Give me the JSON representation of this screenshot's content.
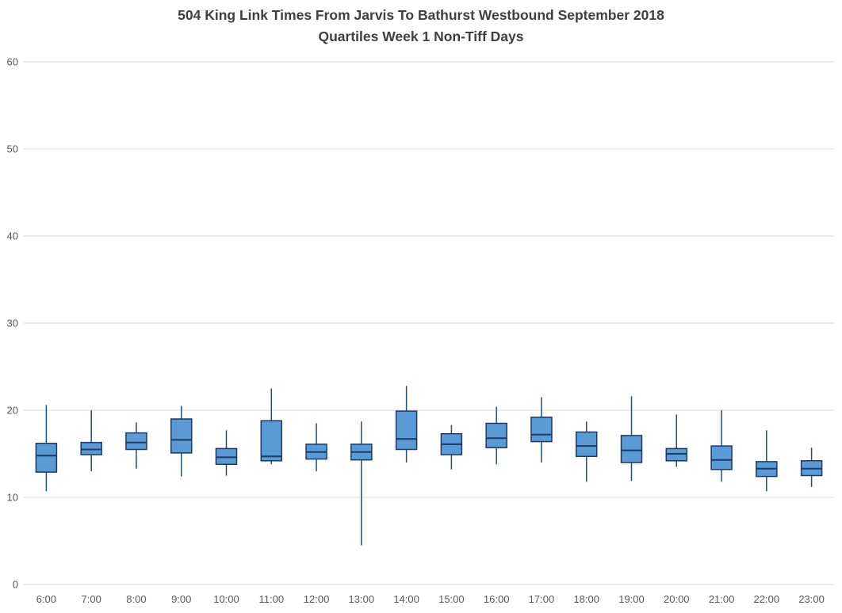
{
  "chart_data": {
    "type": "boxplot",
    "title": "504 King Link Times From Jarvis To Bathurst Westbound September 2018",
    "subtitle": "Quartiles Week 1 Non-Tiff Days",
    "xlabel": "",
    "ylabel": "",
    "ylim": [
      0,
      60
    ],
    "y_ticks": [
      0,
      10,
      20,
      30,
      40,
      50,
      60
    ],
    "grid": true,
    "legend": "none",
    "categories": [
      "6:00",
      "7:00",
      "8:00",
      "9:00",
      "10:00",
      "11:00",
      "12:00",
      "13:00",
      "14:00",
      "15:00",
      "16:00",
      "17:00",
      "18:00",
      "19:00",
      "20:00",
      "21:00",
      "22:00",
      "23:00"
    ],
    "boxes": [
      {
        "category": "6:00",
        "low": 10.7,
        "q1": 12.9,
        "median": 14.8,
        "q3": 16.2,
        "high": 20.6
      },
      {
        "category": "7:00",
        "low": 13.0,
        "q1": 14.9,
        "median": 15.5,
        "q3": 16.3,
        "high": 20.0
      },
      {
        "category": "8:00",
        "low": 13.3,
        "q1": 15.5,
        "median": 16.3,
        "q3": 17.4,
        "high": 18.6
      },
      {
        "category": "9:00",
        "low": 12.4,
        "q1": 15.1,
        "median": 16.6,
        "q3": 19.0,
        "high": 20.5
      },
      {
        "category": "10:00",
        "low": 12.5,
        "q1": 13.8,
        "median": 14.6,
        "q3": 15.6,
        "high": 17.7
      },
      {
        "category": "11:00",
        "low": 13.8,
        "q1": 14.2,
        "median": 14.7,
        "q3": 18.8,
        "high": 22.5
      },
      {
        "category": "12:00",
        "low": 13.0,
        "q1": 14.4,
        "median": 15.2,
        "q3": 16.1,
        "high": 18.5
      },
      {
        "category": "13:00",
        "low": 4.5,
        "q1": 14.3,
        "median": 15.2,
        "q3": 16.1,
        "high": 18.7
      },
      {
        "category": "14:00",
        "low": 14.0,
        "q1": 15.5,
        "median": 16.7,
        "q3": 19.9,
        "high": 22.8
      },
      {
        "category": "15:00",
        "low": 13.2,
        "q1": 14.9,
        "median": 16.1,
        "q3": 17.3,
        "high": 18.3
      },
      {
        "category": "16:00",
        "low": 13.8,
        "q1": 15.7,
        "median": 16.8,
        "q3": 18.5,
        "high": 20.4
      },
      {
        "category": "17:00",
        "low": 14.0,
        "q1": 16.4,
        "median": 17.2,
        "q3": 19.2,
        "high": 21.5
      },
      {
        "category": "18:00",
        "low": 11.8,
        "q1": 14.7,
        "median": 15.9,
        "q3": 17.5,
        "high": 18.7
      },
      {
        "category": "19:00",
        "low": 11.9,
        "q1": 14.0,
        "median": 15.4,
        "q3": 17.1,
        "high": 21.6
      },
      {
        "category": "20:00",
        "low": 13.5,
        "q1": 14.2,
        "median": 15.0,
        "q3": 15.6,
        "high": 19.5
      },
      {
        "category": "21:00",
        "low": 11.8,
        "q1": 13.2,
        "median": 14.3,
        "q3": 15.9,
        "high": 20.0
      },
      {
        "category": "22:00",
        "low": 10.7,
        "q1": 12.4,
        "median": 13.3,
        "q3": 14.1,
        "high": 17.7
      },
      {
        "category": "23:00",
        "low": 11.2,
        "q1": 12.5,
        "median": 13.3,
        "q3": 14.2,
        "high": 15.7
      }
    ],
    "colors": {
      "box_fill": "#5b9bd5",
      "box_border": "#1f3864",
      "median_line": "#1f3864",
      "whisker": "#1f4e79",
      "grid": "#d9d9d9",
      "title_text": "#404040",
      "tick_text": "#595959",
      "background": "#ffffff"
    }
  }
}
